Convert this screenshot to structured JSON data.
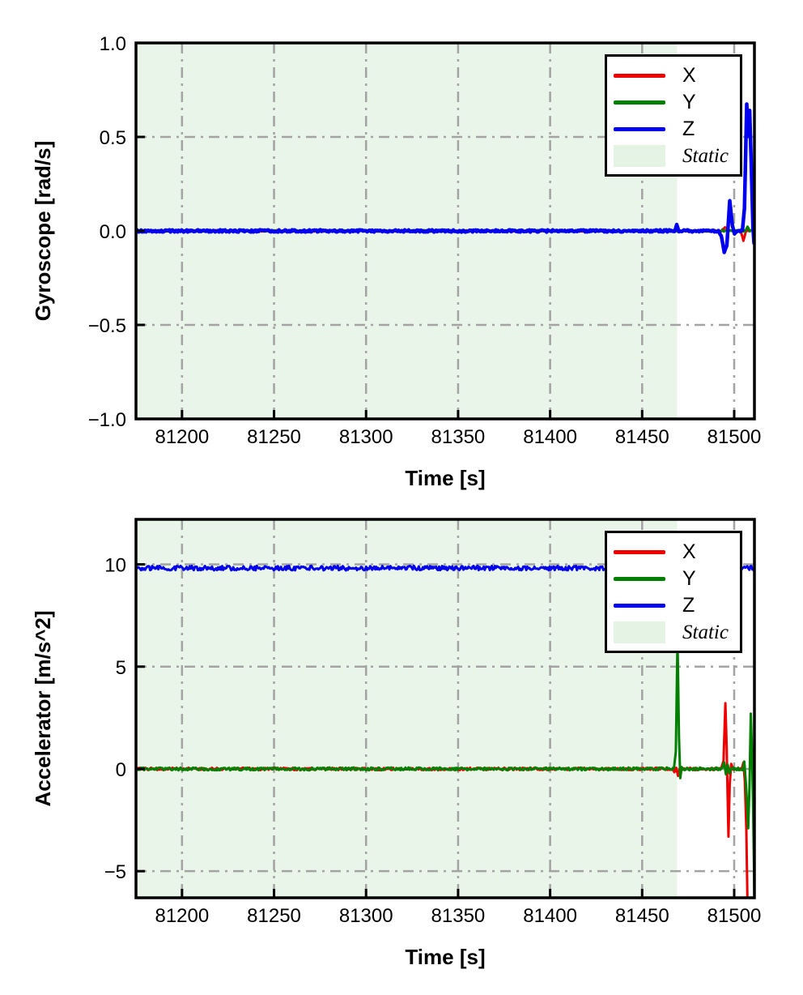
{
  "figure": {
    "background": "#ffffff",
    "axis_color": "#000000",
    "grid_color": "#a3a3a3",
    "grid_style": "dash-dot",
    "static_fill": "#e9f5e9"
  },
  "chart_data": [
    {
      "type": "line",
      "name": "gyroscope",
      "xlabel": "Time [s]",
      "ylabel": "Gyroscope [rad/s]",
      "xlim": [
        81175,
        81511
      ],
      "ylim": [
        -1.0,
        1.0
      ],
      "xticks": [
        81200,
        81250,
        81300,
        81350,
        81400,
        81450,
        81500
      ],
      "xtick_labels": [
        "81200",
        "81250",
        "81300",
        "81350",
        "81400",
        "81450",
        "81500"
      ],
      "yticks": [
        1.0,
        0.5,
        0.0,
        -0.5,
        -1.0
      ],
      "ytick_labels": [
        "1.0",
        "0.5",
        "0.0",
        "−0.5",
        "−1.0"
      ],
      "grid": true,
      "static_region": {
        "label": "Static",
        "x_start": 81175,
        "x_end": 81469,
        "fill": "#e9f5e9"
      },
      "legend": {
        "position": "upper right",
        "items": [
          {
            "label": "X",
            "swatch": "line",
            "color": "#ee0000"
          },
          {
            "label": "Y",
            "swatch": "line",
            "color": "#007f00"
          },
          {
            "label": "Z",
            "swatch": "line",
            "color": "#0000ee"
          },
          {
            "label": "Static",
            "swatch": "patch",
            "color": "#e4f3e4",
            "italic": true
          }
        ]
      },
      "series": [
        {
          "name": "X",
          "color": "#ee0000",
          "width": 3,
          "noise": 0.004,
          "points": [
            [
              81175,
              0
            ],
            [
              81493,
              0
            ],
            [
              81495,
              0.02
            ],
            [
              81497,
              0
            ],
            [
              81503.5,
              0
            ],
            [
              81505,
              -0.05
            ],
            [
              81506.5,
              0
            ],
            [
              81511,
              0
            ]
          ]
        },
        {
          "name": "Y",
          "color": "#007f00",
          "width": 3,
          "noise": 0.004,
          "points": [
            [
              81175,
              0
            ],
            [
              81506,
              0
            ],
            [
              81507.2,
              0.025
            ],
            [
              81508.5,
              0
            ],
            [
              81511,
              0
            ]
          ]
        },
        {
          "name": "Z",
          "color": "#0000ee",
          "width": 4.5,
          "noise": 0.006,
          "points": [
            [
              81175,
              0
            ],
            [
              81467.5,
              0
            ],
            [
              81468.8,
              0.035
            ],
            [
              81470,
              0
            ],
            [
              81491.5,
              0
            ],
            [
              81493,
              -0.03
            ],
            [
              81494.6,
              -0.115
            ],
            [
              81496,
              -0.08
            ],
            [
              81497.6,
              0.155
            ],
            [
              81499,
              0.03
            ],
            [
              81500.2,
              -0.015
            ],
            [
              81501.5,
              0
            ],
            [
              81504.5,
              0
            ],
            [
              81505.6,
              0.12
            ],
            [
              81506.8,
              0.67
            ],
            [
              81507.6,
              0.5
            ],
            [
              81508.4,
              0.64
            ],
            [
              81509.3,
              0.35
            ],
            [
              81510.2,
              0.02
            ],
            [
              81510.8,
              -0.07
            ],
            [
              81511,
              -0.05
            ]
          ]
        }
      ]
    },
    {
      "type": "line",
      "name": "accelerator",
      "xlabel": "Time [s]",
      "ylabel": "Accelerator [m/s^2]",
      "xlim": [
        81175,
        81511
      ],
      "ylim": [
        -6.3,
        12.2
      ],
      "xticks": [
        81200,
        81250,
        81300,
        81350,
        81400,
        81450,
        81500
      ],
      "xtick_labels": [
        "81200",
        "81250",
        "81300",
        "81350",
        "81400",
        "81450",
        "81500"
      ],
      "yticks": [
        10,
        5,
        0,
        -5
      ],
      "ytick_labels": [
        "10",
        "5",
        "0",
        "−5"
      ],
      "grid": true,
      "static_region": {
        "label": "Static",
        "x_start": 81175,
        "x_end": 81469,
        "fill": "#e9f5e9"
      },
      "legend": {
        "position": "upper right",
        "items": [
          {
            "label": "X",
            "swatch": "line",
            "color": "#ee0000"
          },
          {
            "label": "Y",
            "swatch": "line",
            "color": "#007f00"
          },
          {
            "label": "Z",
            "swatch": "line",
            "color": "#0000ee"
          },
          {
            "label": "Static",
            "swatch": "patch",
            "color": "#e4f3e4",
            "italic": true
          }
        ]
      },
      "series": [
        {
          "name": "X",
          "color": "#ee0000",
          "width": 3,
          "noise": 0.06,
          "points": [
            [
              81175,
              0
            ],
            [
              81466.5,
              0
            ],
            [
              81467.5,
              -0.2
            ],
            [
              81468.5,
              0
            ],
            [
              81469.5,
              -0.3
            ],
            [
              81470.5,
              0
            ],
            [
              81493,
              0
            ],
            [
              81494.2,
              0.4
            ],
            [
              81495.2,
              3.25
            ],
            [
              81495.9,
              1
            ],
            [
              81496.3,
              -0.8
            ],
            [
              81496.9,
              -3.35
            ],
            [
              81497.6,
              -0.7
            ],
            [
              81498.4,
              0.3
            ],
            [
              81499.5,
              0
            ],
            [
              81504,
              0
            ],
            [
              81505,
              0.35
            ],
            [
              81505.8,
              -0.6
            ],
            [
              81506.6,
              -3
            ],
            [
              81507.2,
              -6.6
            ],
            [
              81511,
              -6.6
            ]
          ]
        },
        {
          "name": "Y",
          "color": "#007f00",
          "width": 3,
          "noise": 0.07,
          "points": [
            [
              81175,
              0
            ],
            [
              81467.3,
              0
            ],
            [
              81468.3,
              0.8
            ],
            [
              81469.2,
              6.3
            ],
            [
              81470,
              1.5
            ],
            [
              81470.7,
              -0.5
            ],
            [
              81471.5,
              0.1
            ],
            [
              81472.5,
              0
            ],
            [
              81493.5,
              0
            ],
            [
              81494.5,
              0.35
            ],
            [
              81495.5,
              -0.3
            ],
            [
              81496.5,
              0.2
            ],
            [
              81497.5,
              -0.15
            ],
            [
              81498.5,
              0
            ],
            [
              81504.5,
              0
            ],
            [
              81505.5,
              0.4
            ],
            [
              81506.5,
              -0.9
            ],
            [
              81507.6,
              -2.9
            ],
            [
              81508.3,
              -0.8
            ],
            [
              81509,
              2.75
            ],
            [
              81509.7,
              0.8
            ],
            [
              81510.3,
              -2
            ],
            [
              81511,
              -6.4
            ]
          ]
        },
        {
          "name": "Z",
          "color": "#0000ee",
          "width": 3,
          "noise": 0.11,
          "points": [
            [
              81175,
              9.82
            ],
            [
              81511,
              9.82
            ]
          ]
        }
      ]
    }
  ]
}
